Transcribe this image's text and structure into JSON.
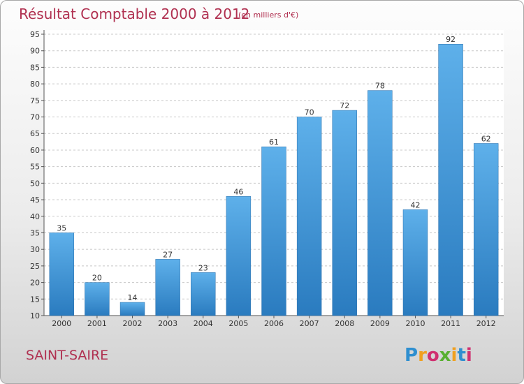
{
  "chart_data": {
    "type": "bar",
    "title": "Résultat Comptable 2000 à 2012",
    "subtitle": "(en milliers d'€)",
    "categories": [
      "2000",
      "2001",
      "2002",
      "2003",
      "2004",
      "2005",
      "2006",
      "2007",
      "2008",
      "2009",
      "2010",
      "2011",
      "2012"
    ],
    "values": [
      35,
      20,
      14,
      27,
      23,
      46,
      61,
      70,
      72,
      78,
      42,
      92,
      62
    ],
    "ylim": [
      10,
      95
    ],
    "yticks": [
      10,
      15,
      20,
      25,
      30,
      35,
      40,
      45,
      50,
      55,
      60,
      65,
      70,
      75,
      80,
      85,
      90,
      95
    ],
    "grid": true,
    "bar_color": "#3a8fd6",
    "xlabel": "",
    "ylabel": ""
  },
  "commune": "SAINT-SAIRE",
  "brand": {
    "name": "Proxiti",
    "letters": [
      "P",
      "r",
      "o",
      "x",
      "i",
      "t",
      "i"
    ],
    "colors": [
      "#2e8fd0",
      "#f0a020",
      "#d03070",
      "#58b030",
      "#f0a020",
      "#2e8fd0",
      "#d03070"
    ]
  }
}
